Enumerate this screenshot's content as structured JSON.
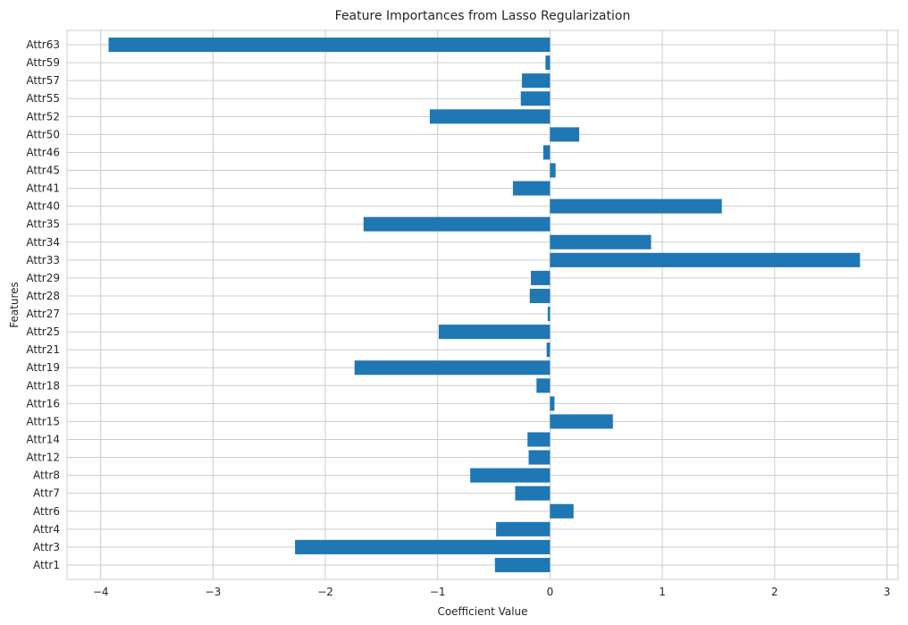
{
  "chart_data": {
    "type": "bar",
    "orientation": "horizontal",
    "title": "Feature Importances from Lasso Regularization",
    "xlabel": "Coefficient Value",
    "ylabel": "Features",
    "xlim": [
      -4.3,
      3.1
    ],
    "x_ticks": [
      -4,
      -3,
      -2,
      -1,
      0,
      1,
      2,
      3
    ],
    "x_tick_labels": [
      "−4",
      "−3",
      "−2",
      "−1",
      "0",
      "1",
      "2",
      "3"
    ],
    "grid": true,
    "bar_color": "#1f77b4",
    "categories": [
      "Attr1",
      "Attr3",
      "Attr4",
      "Attr6",
      "Attr7",
      "Attr8",
      "Attr12",
      "Attr14",
      "Attr15",
      "Attr16",
      "Attr18",
      "Attr19",
      "Attr21",
      "Attr25",
      "Attr27",
      "Attr28",
      "Attr29",
      "Attr33",
      "Attr34",
      "Attr35",
      "Attr40",
      "Attr41",
      "Attr45",
      "Attr46",
      "Attr50",
      "Attr52",
      "Attr55",
      "Attr57",
      "Attr59",
      "Attr63"
    ],
    "values": [
      -0.49,
      -2.27,
      -0.48,
      0.21,
      -0.31,
      -0.71,
      -0.19,
      -0.2,
      0.56,
      0.04,
      -0.12,
      -1.74,
      -0.03,
      -0.99,
      -0.02,
      -0.18,
      -0.17,
      2.76,
      0.9,
      -1.66,
      1.53,
      -0.33,
      0.05,
      -0.06,
      0.26,
      -1.07,
      -0.26,
      -0.25,
      -0.04,
      -3.93
    ]
  }
}
